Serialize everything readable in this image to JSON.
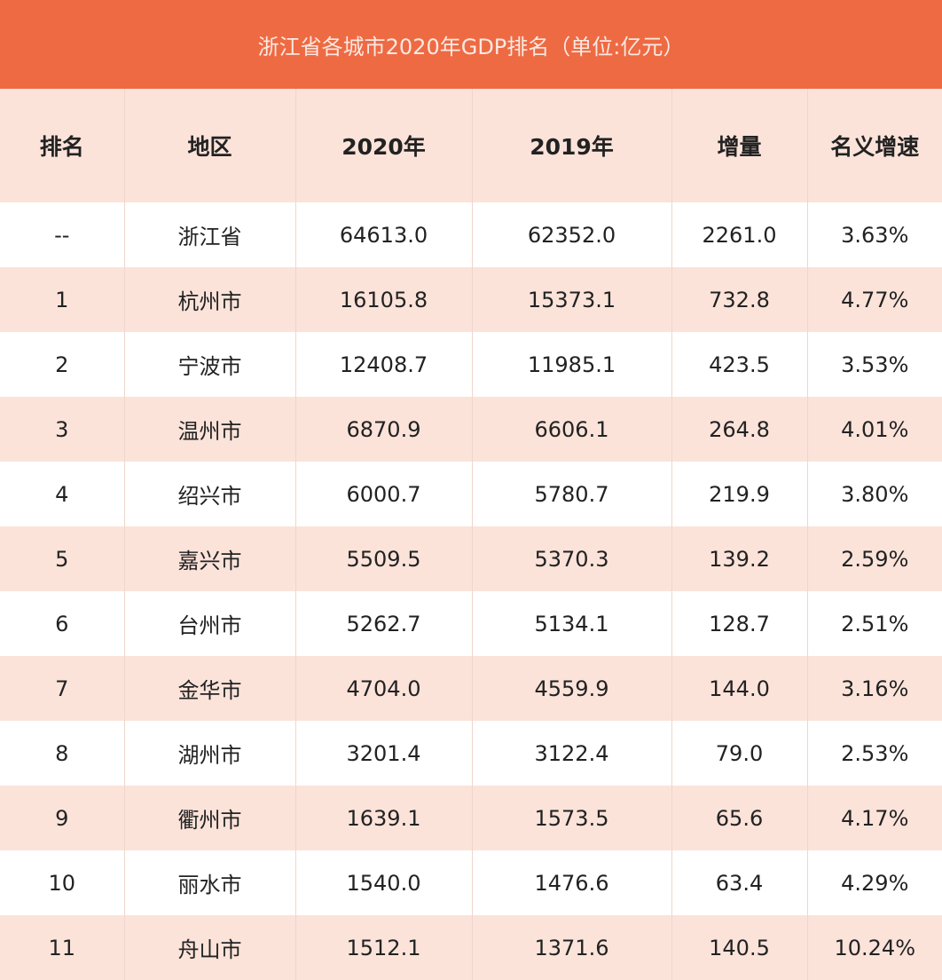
{
  "title": "浙江省各城市2020年GDP排名（单位:亿元）",
  "colors": {
    "header_bar": "#ee6a43",
    "stripe": "#fbe3da"
  },
  "columns": [
    "排名",
    "地区",
    "2020年",
    "2019年",
    "增量",
    "名义增速"
  ],
  "rows": [
    [
      "--",
      "浙江省",
      "64613.0",
      "62352.0",
      "2261.0",
      "3.63%"
    ],
    [
      "1",
      "杭州市",
      "16105.8",
      "15373.1",
      "732.8",
      "4.77%"
    ],
    [
      "2",
      "宁波市",
      "12408.7",
      "11985.1",
      "423.5",
      "3.53%"
    ],
    [
      "3",
      "温州市",
      "6870.9",
      "6606.1",
      "264.8",
      "4.01%"
    ],
    [
      "4",
      "绍兴市",
      "6000.7",
      "5780.7",
      "219.9",
      "3.80%"
    ],
    [
      "5",
      "嘉兴市",
      "5509.5",
      "5370.3",
      "139.2",
      "2.59%"
    ],
    [
      "6",
      "台州市",
      "5262.7",
      "5134.1",
      "128.7",
      "2.51%"
    ],
    [
      "7",
      "金华市",
      "4704.0",
      "4559.9",
      "144.0",
      "3.16%"
    ],
    [
      "8",
      "湖州市",
      "3201.4",
      "3122.4",
      "79.0",
      "2.53%"
    ],
    [
      "9",
      "衢州市",
      "1639.1",
      "1573.5",
      "65.6",
      "4.17%"
    ],
    [
      "10",
      "丽水市",
      "1540.0",
      "1476.6",
      "63.4",
      "4.29%"
    ],
    [
      "11",
      "舟山市",
      "1512.1",
      "1371.6",
      "140.5",
      "10.24%"
    ]
  ]
}
